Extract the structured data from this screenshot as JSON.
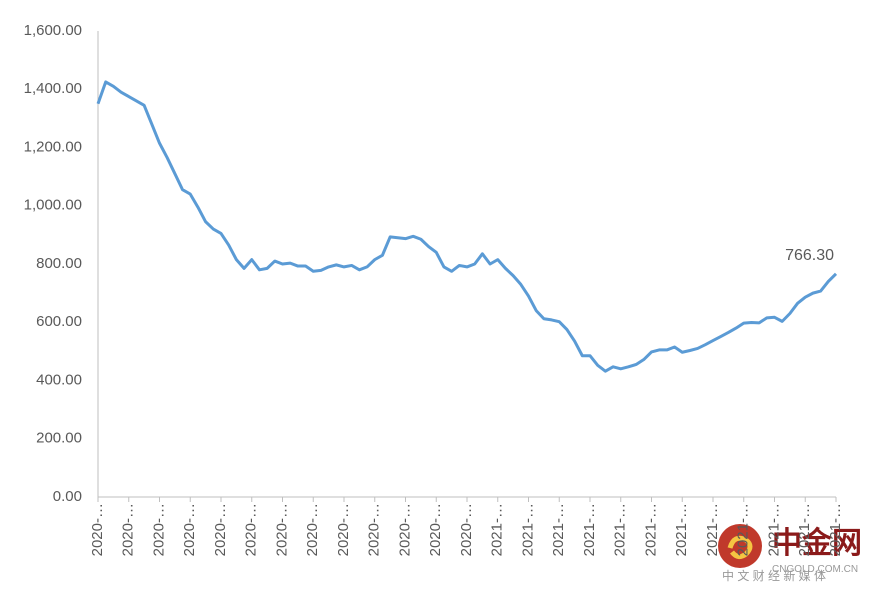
{
  "chart_data": {
    "type": "line",
    "categories": [
      "2020-…",
      null,
      null,
      null,
      "2020-…",
      null,
      null,
      null,
      "2020-…",
      null,
      null,
      null,
      "2020-…",
      null,
      null,
      null,
      "2020-…",
      null,
      null,
      null,
      "2020-…",
      null,
      null,
      null,
      "2020-…",
      null,
      null,
      null,
      "2020-…",
      null,
      null,
      null,
      "2020-…",
      null,
      null,
      null,
      "2020-…",
      null,
      null,
      null,
      "2020-…",
      null,
      null,
      null,
      "2020-…",
      null,
      null,
      null,
      "2020-…",
      null,
      null,
      null,
      "2021-…",
      null,
      null,
      null,
      "2021-…",
      null,
      null,
      null,
      "2021-…",
      null,
      null,
      null,
      "2021-…",
      null,
      null,
      null,
      "2021-…",
      null,
      null,
      null,
      "2021-…",
      null,
      null,
      null,
      "2021-…",
      null,
      null,
      null,
      "2021-…",
      null,
      null,
      null,
      "2021-…",
      null,
      null,
      null,
      "2021-…",
      null,
      null,
      null,
      "2021-…",
      null,
      null,
      null,
      "2021-…"
    ],
    "series": [
      {
        "color": "#5b9bd5",
        "values": [
          1350,
          1425,
          1410,
          1390,
          1375,
          1360,
          1345,
          1280,
          1215,
          1165,
          1110,
          1055,
          1040,
          995,
          945,
          920,
          905,
          865,
          815,
          785,
          815,
          780,
          785,
          810,
          800,
          803,
          793,
          793,
          775,
          778,
          790,
          797,
          790,
          795,
          780,
          790,
          815,
          830,
          893,
          890,
          887,
          895,
          885,
          860,
          840,
          790,
          775,
          795,
          790,
          800,
          835,
          800,
          815,
          785,
          760,
          730,
          690,
          640,
          612,
          608,
          602,
          575,
          535,
          485,
          485,
          452,
          432,
          447,
          440,
          447,
          455,
          472,
          498,
          505,
          505,
          515,
          497,
          503,
          510,
          523,
          537,
          551,
          565,
          580,
          597,
          599,
          598,
          615,
          617,
          603,
          630,
          665,
          686,
          700,
          707,
          740,
          766.3
        ],
        "value_labels": [
          null,
          null,
          null,
          null,
          null,
          null,
          null,
          null,
          null,
          null,
          null,
          null,
          null,
          null,
          null,
          null,
          null,
          null,
          null,
          null,
          null,
          null,
          null,
          null,
          null,
          null,
          null,
          null,
          null,
          null,
          null,
          null,
          null,
          null,
          null,
          null,
          null,
          null,
          null,
          null,
          null,
          null,
          null,
          null,
          null,
          null,
          null,
          null,
          null,
          null,
          null,
          null,
          null,
          null,
          null,
          null,
          null,
          null,
          null,
          null,
          null,
          null,
          null,
          null,
          null,
          null,
          null,
          null,
          null,
          null,
          null,
          null,
          null,
          null,
          null,
          null,
          null,
          null,
          null,
          null,
          null,
          null,
          null,
          null,
          null,
          null,
          null,
          null,
          null,
          null,
          null,
          null,
          null,
          null,
          null,
          null,
          "766.30"
        ]
      }
    ],
    "ylim": [
      0,
      1600
    ],
    "yticks": [
      {
        "value": 0,
        "label": "0.00"
      },
      {
        "value": 200,
        "label": "200.00"
      },
      {
        "value": 400,
        "label": "400.00"
      },
      {
        "value": 600,
        "label": "600.00"
      },
      {
        "value": 800,
        "label": "800.00"
      },
      {
        "value": 1000,
        "label": "1,000.00"
      },
      {
        "value": 1200,
        "label": "1,200.00"
      },
      {
        "value": 1400,
        "label": "1,400.00"
      },
      {
        "value": 1600,
        "label": "1,600.00"
      }
    ],
    "grid": false
  },
  "watermark": {
    "name": "中金网",
    "site": "CNGOLD.COM.CN",
    "slogan": "中 文 财 经 新 媒 体"
  }
}
